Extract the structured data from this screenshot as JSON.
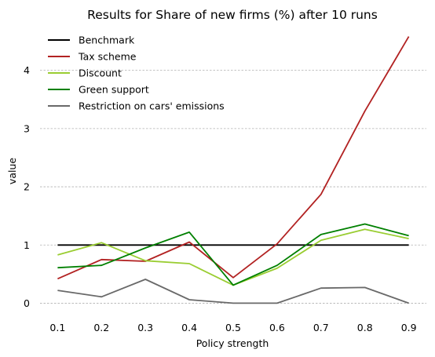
{
  "chart_data": {
    "type": "line",
    "title": "Results for Share of new firms (%) after 10 runs",
    "xlabel": "Policy strength",
    "ylabel": "value",
    "x": [
      0.1,
      0.2,
      0.3,
      0.4,
      0.5,
      0.6,
      0.7,
      0.8,
      0.9
    ],
    "x_tick_labels": [
      "0.1",
      "0.2",
      "0.3",
      "0.4",
      "0.5",
      "0.6",
      "0.7",
      "0.8",
      "0.9"
    ],
    "y_ticks": [
      0,
      1,
      2,
      3,
      4
    ],
    "y_tick_labels": [
      "0",
      "1",
      "2",
      "3",
      "4"
    ],
    "xlim": [
      0.06,
      0.94
    ],
    "ylim": [
      -0.25,
      4.75
    ],
    "grid": "horizontal dashed",
    "legend_position": "top-left",
    "series": [
      {
        "name": "Benchmark",
        "color": "#000000",
        "values": [
          1,
          1,
          1,
          1,
          1,
          1,
          1,
          1,
          1
        ]
      },
      {
        "name": "Tax scheme",
        "color": "#b22222",
        "values": [
          0.42,
          0.75,
          0.72,
          1.05,
          0.44,
          1.02,
          1.87,
          3.3,
          4.58
        ]
      },
      {
        "name": "Discount",
        "color": "#9acd32",
        "values": [
          0.83,
          1.04,
          0.73,
          0.68,
          0.31,
          0.6,
          1.08,
          1.27,
          1.11
        ]
      },
      {
        "name": "Green support",
        "color": "#008000",
        "values": [
          0.61,
          0.65,
          0.95,
          1.22,
          0.31,
          0.65,
          1.18,
          1.36,
          1.16
        ]
      },
      {
        "name": "Restriction on cars' emissions",
        "color": "#696969",
        "values": [
          0.22,
          0.11,
          0.41,
          0.06,
          0.0,
          0.0,
          0.26,
          0.27,
          0.0
        ]
      }
    ]
  }
}
